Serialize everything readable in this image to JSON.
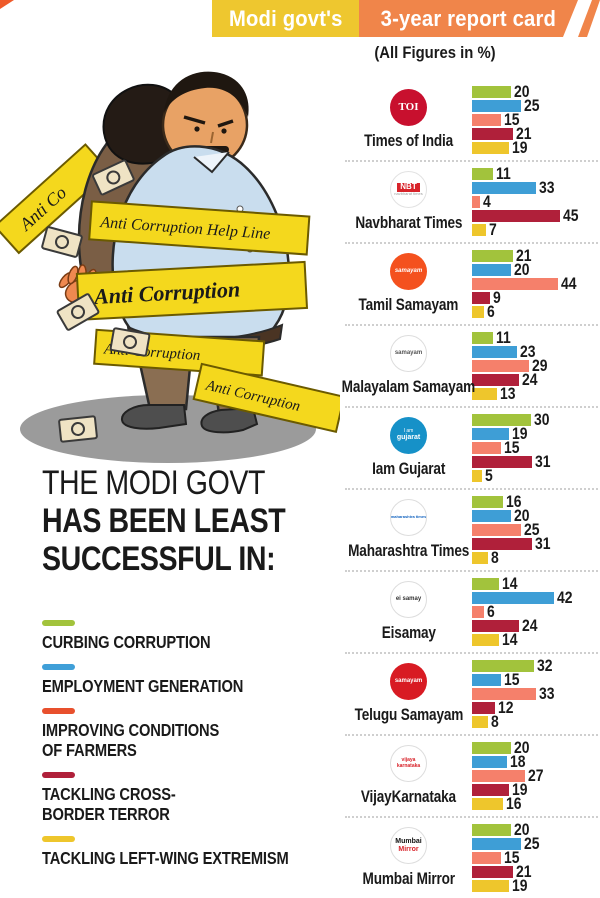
{
  "header": {
    "title_part1": "Modi govt's",
    "title_part2": "3-year report card",
    "subtitle": "(All Figures in %)",
    "colors": {
      "yellow": "#eec72f",
      "orange": "#f0854a"
    }
  },
  "illustration": {
    "description": "cartoon of a politician carrying a person on his back, wrapped in yellow anti-corruption ribbons, money notes falling",
    "ribbons": [
      "Anti Co",
      "Anti Corruption Help Line",
      "Anti Corruption",
      "Anti Corruption",
      "Anti Corruption"
    ]
  },
  "headline": {
    "line1": "THE MODI GOVT",
    "line2": "HAS BEEN LEAST",
    "line3": "SUCCESSFUL IN:"
  },
  "legend": [
    {
      "label": "CURBING CORRUPTION",
      "color": "#a2c33c"
    },
    {
      "label": "EMPLOYMENT GENERATION",
      "color": "#3f9fd8"
    },
    {
      "label": "IMPROVING CONDITIONS\nOF FARMERS",
      "color": "#e8502d"
    },
    {
      "label": "TACKLING CROSS-\nBORDER TERROR",
      "color": "#b0203a"
    },
    {
      "label": "TACKLING LEFT-WING EXTREMISM",
      "color": "#eec62c"
    }
  ],
  "chart_data": {
    "type": "bar",
    "orientation": "horizontal",
    "unit": "%",
    "xlim": [
      0,
      50
    ],
    "grid": false,
    "series_labels": [
      "Curbing corruption",
      "Employment generation",
      "Improving conditions of farmers",
      "Tackling cross-border terror",
      "Tackling left-wing extremism"
    ],
    "series_colors": [
      "#a2c33c",
      "#3e9ed6",
      "#f5806b",
      "#b0203a",
      "#eec62c"
    ],
    "publications": [
      {
        "name": "Times of India",
        "values": [
          20,
          25,
          15,
          21,
          19
        ],
        "logo": {
          "bg": "#c8102e",
          "lines": [
            {
              "text": "TOI",
              "color": "#ffffff",
              "size": 11,
              "bold": true,
              "serif": true
            }
          ]
        }
      },
      {
        "name": "Navbharat Times",
        "values": [
          11,
          33,
          4,
          45,
          7
        ],
        "logo": {
          "bg": "#ffffff",
          "border": "#e2e2e2",
          "lines": [
            {
              "text": "NBT",
              "color": "#ffffff",
              "size": 8,
              "bold": true,
              "chipBg": "#d8232a"
            },
            {
              "text": "navbharat times",
              "color": "#9e9e9e",
              "size": 4
            }
          ]
        }
      },
      {
        "name": "Tamil Samayam",
        "values": [
          21,
          20,
          44,
          9,
          6
        ],
        "logo": {
          "bg": "#f4511e",
          "lines": [
            {
              "text": "samayam",
              "color": "#ffffff",
              "size": 6,
              "bold": true,
              "italic": true
            }
          ]
        }
      },
      {
        "name": "Malayalam Samayam",
        "values": [
          11,
          23,
          29,
          24,
          13
        ],
        "logo": {
          "bg": "#ffffff",
          "border": "#dddddd",
          "lines": [
            {
              "text": "samayam",
              "color": "#555555",
              "size": 6,
              "bold": true
            }
          ]
        }
      },
      {
        "name": "Iam Gujarat",
        "values": [
          30,
          19,
          15,
          31,
          5
        ],
        "logo": {
          "bg": "#1691c8",
          "lines": [
            {
              "text": "I am",
              "color": "#ffffff",
              "size": 5
            },
            {
              "text": "gujarat",
              "color": "#ffffff",
              "size": 7,
              "bold": true
            }
          ]
        }
      },
      {
        "name": "Maharashtra Times",
        "values": [
          16,
          20,
          25,
          31,
          8
        ],
        "logo": {
          "bg": "#ffffff",
          "border": "#dddddd",
          "lines": [
            {
              "text": "maharashtra times",
              "color": "#1565c0",
              "size": 4,
              "bold": true
            }
          ]
        }
      },
      {
        "name": "Eisamay",
        "values": [
          14,
          42,
          6,
          24,
          14
        ],
        "logo": {
          "bg": "#ffffff",
          "border": "#dddddd",
          "lines": [
            {
              "text": "ei samay",
              "color": "#333333",
              "size": 6,
              "bold": true
            }
          ]
        }
      },
      {
        "name": "Telugu Samayam",
        "values": [
          32,
          15,
          33,
          12,
          8
        ],
        "logo": {
          "bg": "#d81b23",
          "lines": [
            {
              "text": "samayam",
              "color": "#ffffff",
              "size": 6,
              "bold": true
            }
          ]
        }
      },
      {
        "name": "VijayKarnataka",
        "values": [
          20,
          18,
          27,
          19,
          16
        ],
        "logo": {
          "bg": "#ffffff",
          "border": "#dddddd",
          "lines": [
            {
              "text": "vijaya",
              "color": "#d8232a",
              "size": 5,
              "bold": true
            },
            {
              "text": "karnataka",
              "color": "#d8232a",
              "size": 5,
              "bold": true
            }
          ]
        }
      },
      {
        "name": "Mumbai Mirror",
        "values": [
          20,
          25,
          15,
          21,
          19
        ],
        "logo": {
          "bg": "#ffffff",
          "border": "#dddddd",
          "lines": [
            {
              "text": "Mumbai",
              "color": "#111111",
              "size": 7,
              "bold": true
            },
            {
              "text": "Mirror",
              "color": "#d8232a",
              "size": 7,
              "bold": true
            }
          ]
        }
      }
    ]
  }
}
